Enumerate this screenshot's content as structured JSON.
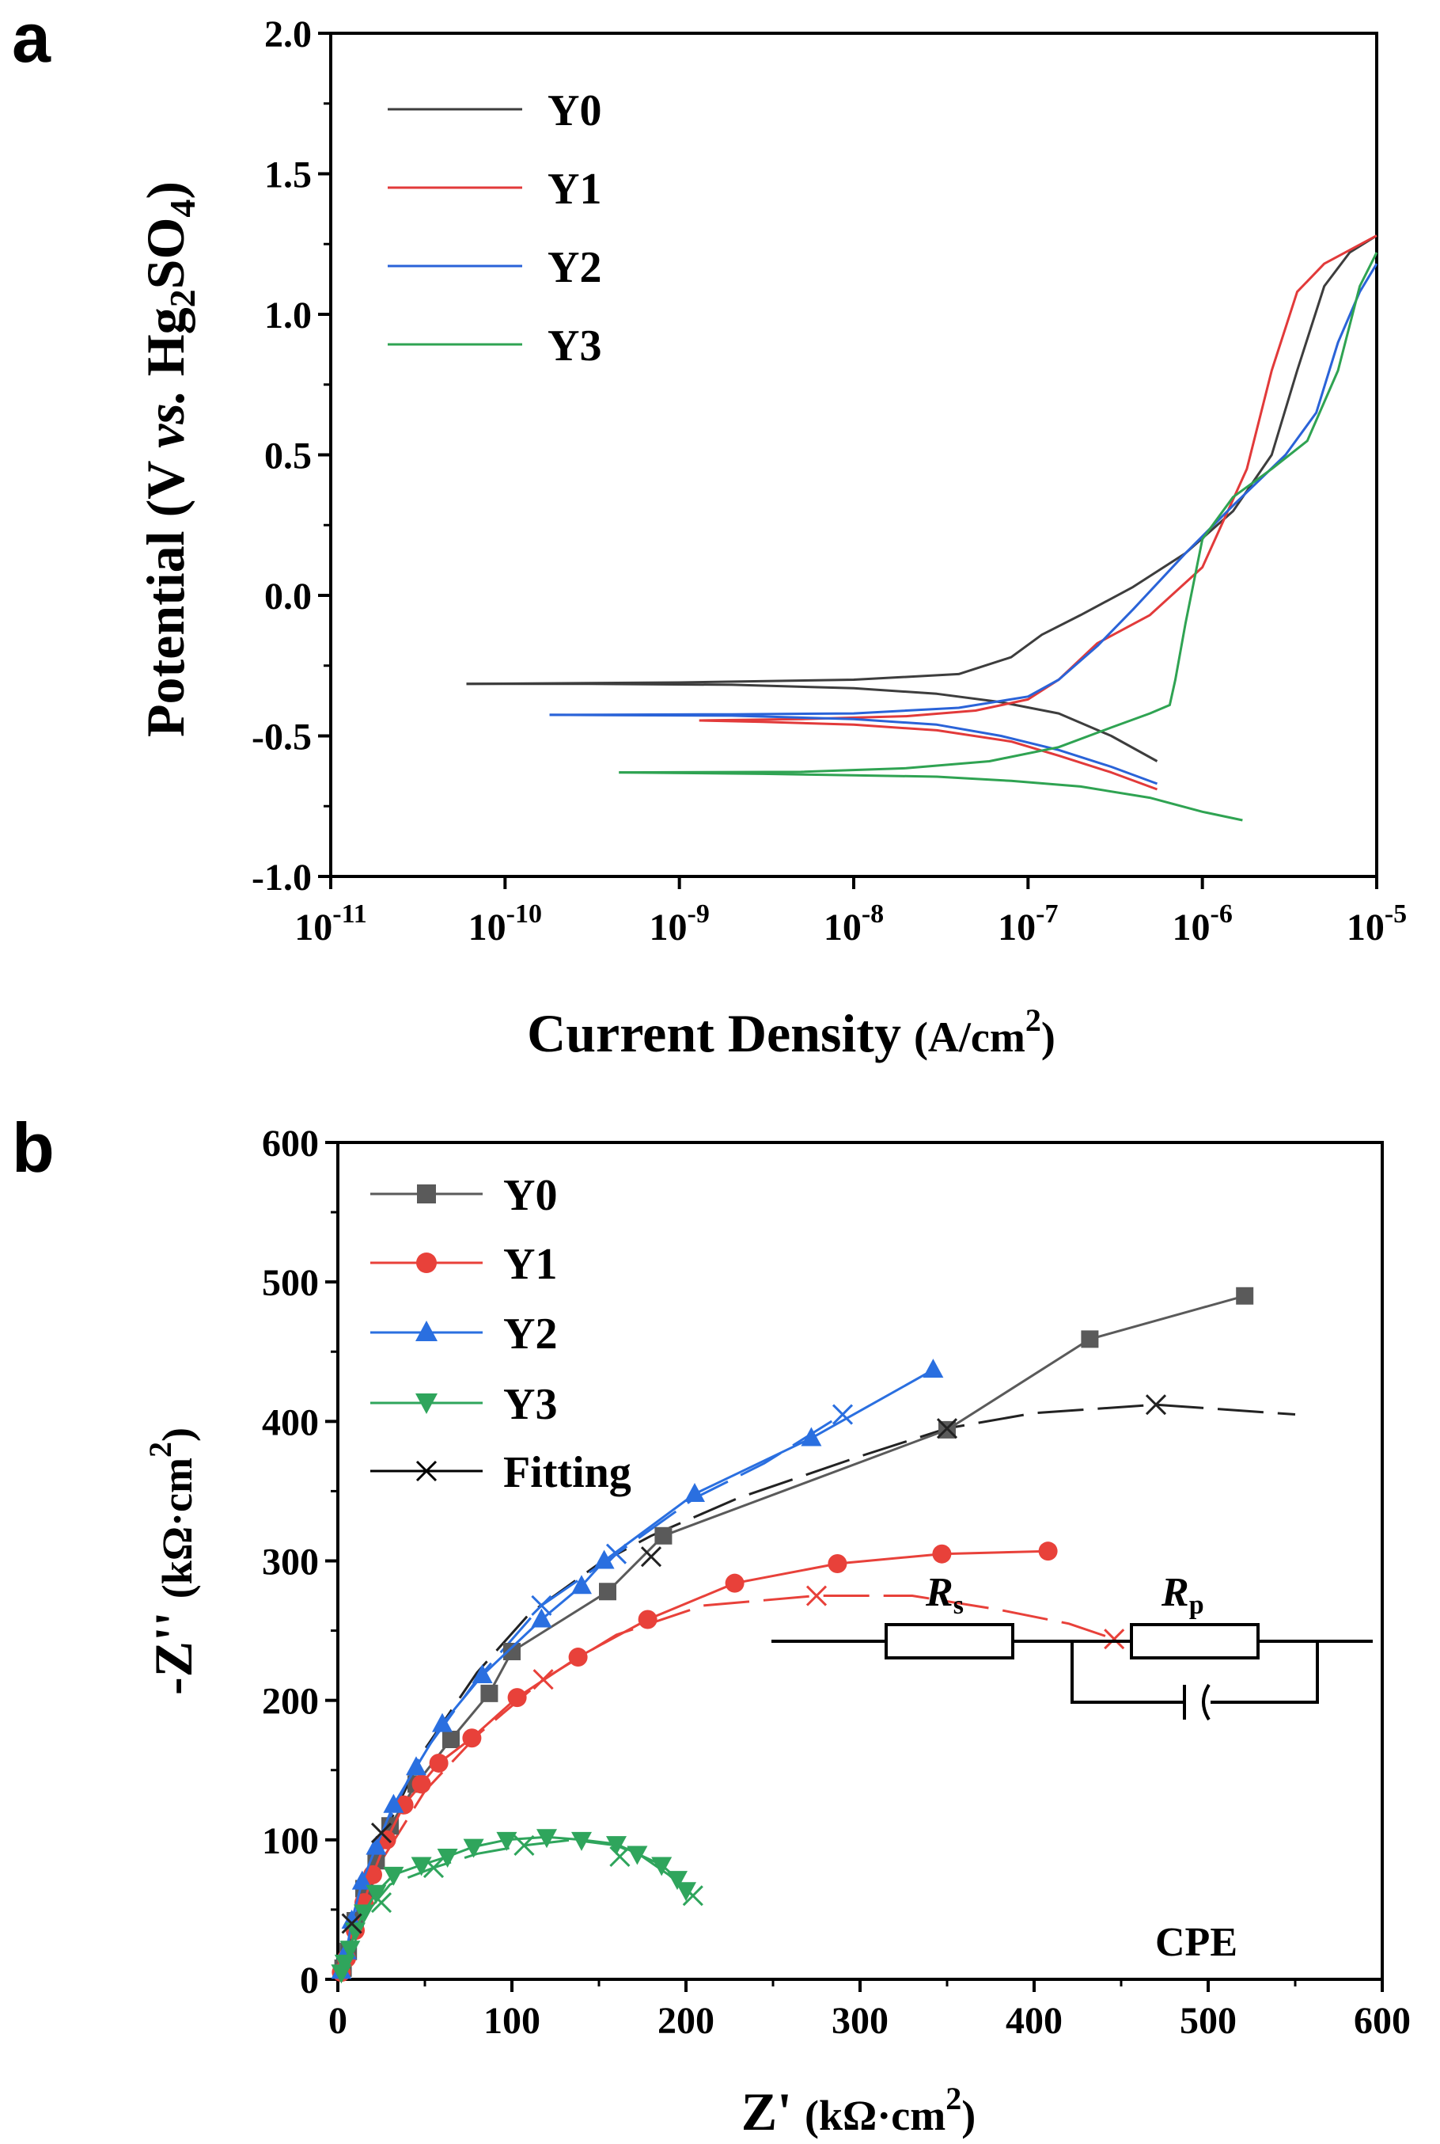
{
  "chart_data": [
    {
      "type": "line",
      "panel_label": "a",
      "title": "",
      "xlabel": "Current Density (A/cm2)",
      "xlabel_main": "Current Density",
      "xlabel_unit": "(A/cm",
      "xlabel_unit_sup": "2",
      "xlabel_unit_end": ")",
      "ylabel": "Potential (V vs. Hg2SO4)",
      "ylabel_parts": [
        "Potential (V ",
        "vs.",
        " Hg",
        "2",
        "SO",
        "4",
        ")"
      ],
      "xscale": "log",
      "xlim": [
        1e-11,
        1e-05
      ],
      "ylim": [
        -1.0,
        2.0
      ],
      "x_ticks": [
        {
          "base": "10",
          "exp": "-11"
        },
        {
          "base": "10",
          "exp": "-10"
        },
        {
          "base": "10",
          "exp": "-9"
        },
        {
          "base": "10",
          "exp": "-8"
        },
        {
          "base": "10",
          "exp": "-7"
        },
        {
          "base": "10",
          "exp": "-6"
        },
        {
          "base": "10",
          "exp": "-5"
        }
      ],
      "y_ticks": [
        "-1.0",
        "-0.5",
        "0.0",
        "0.5",
        "1.0",
        "1.5",
        "2.0"
      ],
      "legend_position": "top-left",
      "series": [
        {
          "name": "Y0",
          "color": "#3d3d3d",
          "cathodic": [
            [
              5.5e-07,
              -0.59
            ],
            [
              3e-07,
              -0.5
            ],
            [
              1.5e-07,
              -0.42
            ],
            [
              7e-08,
              -0.38
            ],
            [
              3e-08,
              -0.35
            ],
            [
              1e-08,
              -0.33
            ],
            [
              2e-09,
              -0.318
            ],
            [
              3e-10,
              -0.315
            ],
            [
              6e-11,
              -0.315
            ]
          ],
          "anodic": [
            [
              6e-11,
              -0.315
            ],
            [
              1e-09,
              -0.31
            ],
            [
              1e-08,
              -0.3
            ],
            [
              4e-08,
              -0.28
            ],
            [
              8e-08,
              -0.22
            ],
            [
              1.2e-07,
              -0.14
            ],
            [
              2e-07,
              -0.07
            ],
            [
              4e-07,
              0.03
            ],
            [
              8e-07,
              0.15
            ],
            [
              1.5e-06,
              0.3
            ],
            [
              2.5e-06,
              0.5
            ],
            [
              3.5e-06,
              0.8
            ],
            [
              5e-06,
              1.1
            ],
            [
              7e-06,
              1.22
            ],
            [
              1e-05,
              1.28
            ]
          ]
        },
        {
          "name": "Y1",
          "color": "#e23a3a",
          "cathodic": [
            [
              5.5e-07,
              -0.69
            ],
            [
              3e-07,
              -0.63
            ],
            [
              1.5e-07,
              -0.57
            ],
            [
              8e-08,
              -0.52
            ],
            [
              3e-08,
              -0.48
            ],
            [
              1e-08,
              -0.46
            ],
            [
              3e-09,
              -0.45
            ],
            [
              1.3e-09,
              -0.445
            ]
          ],
          "anodic": [
            [
              1.3e-09,
              -0.445
            ],
            [
              5e-09,
              -0.44
            ],
            [
              2e-08,
              -0.43
            ],
            [
              5e-08,
              -0.41
            ],
            [
              1e-07,
              -0.37
            ],
            [
              1.5e-07,
              -0.3
            ],
            [
              2.5e-07,
              -0.17
            ],
            [
              5e-07,
              -0.07
            ],
            [
              1e-06,
              0.1
            ],
            [
              1.8e-06,
              0.45
            ],
            [
              2.5e-06,
              0.8
            ],
            [
              3.5e-06,
              1.08
            ],
            [
              5e-06,
              1.18
            ],
            [
              1e-05,
              1.28
            ]
          ]
        },
        {
          "name": "Y2",
          "color": "#2a63d8",
          "cathodic": [
            [
              5.5e-07,
              -0.67
            ],
            [
              3e-07,
              -0.61
            ],
            [
              1.5e-07,
              -0.55
            ],
            [
              7e-08,
              -0.5
            ],
            [
              3e-08,
              -0.46
            ],
            [
              1e-08,
              -0.44
            ],
            [
              2e-09,
              -0.428
            ],
            [
              1.8e-10,
              -0.425
            ]
          ],
          "anodic": [
            [
              1.8e-10,
              -0.425
            ],
            [
              2e-09,
              -0.423
            ],
            [
              1e-08,
              -0.42
            ],
            [
              4e-08,
              -0.4
            ],
            [
              1e-07,
              -0.36
            ],
            [
              1.5e-07,
              -0.3
            ],
            [
              2.5e-07,
              -0.18
            ],
            [
              4e-07,
              -0.05
            ],
            [
              8e-07,
              0.15
            ],
            [
              1.5e-06,
              0.32
            ],
            [
              3e-06,
              0.5
            ],
            [
              4.5e-06,
              0.65
            ],
            [
              6e-06,
              0.9
            ],
            [
              8e-06,
              1.08
            ],
            [
              1e-05,
              1.18
            ]
          ]
        },
        {
          "name": "Y3",
          "color": "#2fa352",
          "cathodic": [
            [
              1.7e-06,
              -0.8
            ],
            [
              1e-06,
              -0.77
            ],
            [
              5e-07,
              -0.72
            ],
            [
              2e-07,
              -0.68
            ],
            [
              8e-08,
              -0.66
            ],
            [
              3e-08,
              -0.645
            ],
            [
              1e-08,
              -0.64
            ],
            [
              3e-09,
              -0.635
            ],
            [
              4.5e-10,
              -0.63
            ]
          ],
          "anodic": [
            [
              4.5e-10,
              -0.63
            ],
            [
              5e-09,
              -0.628
            ],
            [
              2e-08,
              -0.615
            ],
            [
              6e-08,
              -0.59
            ],
            [
              1.5e-07,
              -0.54
            ],
            [
              3e-07,
              -0.47
            ],
            [
              5e-07,
              -0.42
            ],
            [
              6.5e-07,
              -0.39
            ],
            [
              7e-07,
              -0.3
            ],
            [
              8e-07,
              -0.1
            ],
            [
              1e-06,
              0.2
            ],
            [
              1.5e-06,
              0.35
            ],
            [
              2.5e-06,
              0.45
            ],
            [
              4e-06,
              0.55
            ],
            [
              6e-06,
              0.8
            ],
            [
              8e-06,
              1.1
            ],
            [
              1e-05,
              1.22
            ]
          ]
        }
      ]
    },
    {
      "type": "scatter",
      "panel_label": "b",
      "title": "",
      "xlabel": "Z' (kΩ·cm2)",
      "xlabel_main": "Z'",
      "xlabel_unit": "(kΩ·cm",
      "xlabel_unit_sup": "2",
      "xlabel_unit_end": ")",
      "ylabel": "-Z'' (kΩ·cm2)",
      "ylabel_main": "-Z''",
      "ylabel_unit": "(kΩ·cm",
      "ylabel_unit_sup": "2",
      "ylabel_unit_end": ")",
      "xlim": [
        0,
        600
      ],
      "ylim": [
        0,
        600
      ],
      "x_ticks": [
        "0",
        "100",
        "200",
        "300",
        "400",
        "500",
        "600"
      ],
      "y_ticks": [
        "0",
        "100",
        "200",
        "300",
        "400",
        "500",
        "600"
      ],
      "legend_position": "top-left",
      "series": [
        {
          "name": "Y0",
          "color": "#5a5a5a",
          "marker": "square",
          "points": [
            [
              3,
              8
            ],
            [
              6,
              20
            ],
            [
              10,
              42
            ],
            [
              15,
              65
            ],
            [
              22,
              85
            ],
            [
              30,
              110
            ],
            [
              45,
              140
            ],
            [
              65,
              172
            ],
            [
              87,
              205
            ],
            [
              100,
              235
            ],
            [
              155,
              278
            ],
            [
              187,
              318
            ],
            [
              350,
              394
            ],
            [
              432,
              459
            ],
            [
              521,
              490
            ]
          ]
        },
        {
          "name": "Y1",
          "color": "#e8413a",
          "marker": "circle",
          "points": [
            [
              2,
              5
            ],
            [
              5,
              15
            ],
            [
              10,
              35
            ],
            [
              15,
              55
            ],
            [
              20,
              75
            ],
            [
              28,
              100
            ],
            [
              38,
              125
            ],
            [
              48,
              140
            ],
            [
              58,
              155
            ],
            [
              77,
              173
            ],
            [
              103,
              202
            ],
            [
              138,
              231
            ],
            [
              178,
              258
            ],
            [
              228,
              284
            ],
            [
              287,
              298
            ],
            [
              347,
              305
            ],
            [
              408,
              307
            ]
          ]
        },
        {
          "name": "Y2",
          "color": "#2a6fe0",
          "marker": "triangle-up",
          "points": [
            [
              2,
              6
            ],
            [
              5,
              20
            ],
            [
              8,
              42
            ],
            [
              14,
              70
            ],
            [
              22,
              95
            ],
            [
              32,
              125
            ],
            [
              45,
              152
            ],
            [
              60,
              183
            ],
            [
              83,
              218
            ],
            [
              117,
              258
            ],
            [
              140,
              282
            ],
            [
              153,
              300
            ],
            [
              205,
              348
            ],
            [
              272,
              388
            ],
            [
              342,
              437
            ]
          ]
        },
        {
          "name": "Y3",
          "color": "#2fa55c",
          "marker": "triangle-down",
          "points": [
            [
              2,
              5
            ],
            [
              4,
              12
            ],
            [
              7,
              22
            ],
            [
              10,
              35
            ],
            [
              15,
              48
            ],
            [
              22,
              62
            ],
            [
              32,
              75
            ],
            [
              48,
              82
            ],
            [
              63,
              88
            ],
            [
              78,
              95
            ],
            [
              97,
              100
            ],
            [
              120,
              102
            ],
            [
              140,
              100
            ],
            [
              160,
              97
            ],
            [
              172,
              90
            ],
            [
              186,
              82
            ],
            [
              195,
              72
            ],
            [
              200,
              64
            ]
          ]
        },
        {
          "name": "Fitting",
          "color": "#000000",
          "marker": "x",
          "curves": [
            {
              "color": "#222222",
              "points": [
                [
                  2,
                  5
                ],
                [
                  10,
                  38
                ],
                [
                  25,
                  100
                ],
                [
                  50,
                  165
                ],
                [
                  80,
                  220
                ],
                [
                  110,
                  262
                ],
                [
                  150,
                  298
                ],
                [
                  180,
                  318
                ],
                [
                  230,
                  345
                ],
                [
                  300,
                  375
                ],
                [
                  350,
                  395
                ],
                [
                  400,
                  406
                ],
                [
                  470,
                  412
                ],
                [
                  550,
                  405
                ]
              ]
            },
            {
              "color": "#e8413a",
              "points": [
                [
                  2,
                  5
                ],
                [
                  10,
                  35
                ],
                [
                  25,
                  85
                ],
                [
                  50,
                  135
                ],
                [
                  80,
                  175
                ],
                [
                  118,
                  215
                ],
                [
                  160,
                  247
                ],
                [
                  210,
                  268
                ],
                [
                  275,
                  275
                ],
                [
                  330,
                  275
                ],
                [
                  380,
                  265
                ],
                [
                  420,
                  255
                ],
                [
                  446,
                  244
                ]
              ]
            },
            {
              "color": "#2a6fe0",
              "points": [
                [
                  2,
                  6
                ],
                [
                  10,
                  45
                ],
                [
                  22,
                  95
                ],
                [
                  45,
                  155
                ],
                [
                  80,
                  215
                ],
                [
                  117,
                  268
                ],
                [
                  160,
                  305
                ],
                [
                  205,
                  345
                ],
                [
                  245,
                  370
                ],
                [
                  290,
                  405
                ]
              ]
            },
            {
              "color": "#2fa55c",
              "points": [
                [
                  2,
                  5
                ],
                [
                  8,
                  22
                ],
                [
                  18,
                  50
                ],
                [
                  30,
                  68
                ],
                [
                  55,
                  80
                ],
                [
                  80,
                  90
                ],
                [
                  107,
                  96
                ],
                [
                  135,
                  100
                ],
                [
                  160,
                  96
                ],
                [
                  175,
                  88
                ],
                [
                  190,
                  75
                ],
                [
                  204,
                  60
                ]
              ]
            }
          ],
          "x_markers": [
            [
              470,
              412
            ],
            [
              350,
              395
            ],
            [
              180,
              303
            ],
            [
              25,
              105
            ],
            [
              8,
              40
            ],
            [
              275,
              275
            ],
            [
              446,
              244
            ],
            [
              118,
              215
            ],
            [
              290,
              405
            ],
            [
              117,
              268
            ],
            [
              160,
              305
            ],
            [
              107,
              96
            ],
            [
              162,
              88
            ],
            [
              204,
              60
            ],
            [
              55,
              80
            ],
            [
              25,
              55
            ]
          ]
        }
      ],
      "circuit_inset": {
        "rs_label": "R",
        "rs_sub": "s",
        "rp_label": "R",
        "rp_sub": "p",
        "cpe_label": "CPE"
      }
    }
  ]
}
